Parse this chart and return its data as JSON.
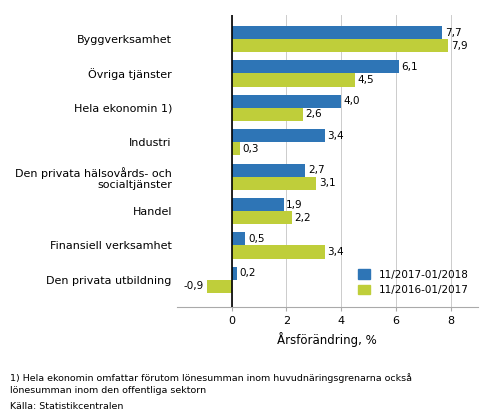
{
  "categories": [
    "Den privata utbildning",
    "Finansiell verksamhet",
    "Handel",
    "Den privata hälsovårds- och\nsocialtjänster",
    "Industri",
    "Hela ekonomin 1)",
    "Övriga tjänster",
    "Byggverksamhet"
  ],
  "series1": [
    0.2,
    0.5,
    1.9,
    2.7,
    3.4,
    4.0,
    6.1,
    7.7
  ],
  "series2": [
    -0.9,
    3.4,
    2.2,
    3.1,
    0.3,
    2.6,
    4.5,
    7.9
  ],
  "series1_label": "11/2017-01/2018",
  "series2_label": "11/2016-01/2017",
  "series1_color": "#2E75B6",
  "series2_color": "#BFCE3A",
  "xlabel": "Årsförändring, %",
  "xlim": [
    -2,
    9
  ],
  "xticks": [
    0,
    2,
    4,
    6,
    8
  ],
  "footnote1": "1) Hela ekonomin omfattar förutom lönesumman inom huvudnäringsgrenarna också",
  "footnote2": "lönesumman inom den offentliga sektorn",
  "source": "Källa: Statistikcentralen",
  "bar_height": 0.38,
  "bg_color": "#ffffff"
}
